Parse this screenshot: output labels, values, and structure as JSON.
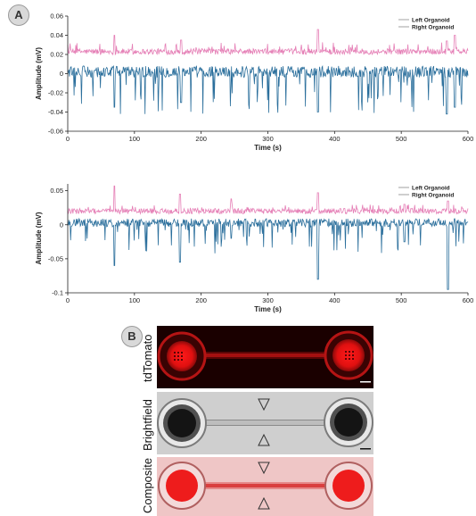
{
  "panel_a_label": "A",
  "panel_b_label": "B",
  "chart_data": [
    {
      "type": "line",
      "xlabel": "Time (s)",
      "ylabel": "Amplitude (mV)",
      "xlim": [
        0,
        600
      ],
      "ylim": [
        -0.06,
        0.06
      ],
      "xticks": [
        "0",
        "100",
        "200",
        "300",
        "400",
        "500",
        "600"
      ],
      "yticks": [
        "0.06",
        "0.04",
        "0.02",
        "0",
        "-0.02",
        "-0.04",
        "-0.06"
      ],
      "legend": "top-right",
      "series": [
        {
          "name": "Left Organoid",
          "color": "#e57fb6",
          "baseline": 0.023,
          "noise": 0.003,
          "bursts": [
            {
              "x": 70,
              "value": 0.04
            },
            {
              "x": 170,
              "value": 0.035
            },
            {
              "x": 375,
              "value": 0.046
            },
            {
              "x": 568,
              "value": 0.034
            },
            {
              "x": 580,
              "value": 0.04
            }
          ]
        },
        {
          "name": "Right Organoid",
          "color": "#2b6f9c",
          "baseline": 0.002,
          "noise": 0.006,
          "bursts": [
            {
              "x": 70,
              "value": -0.035
            },
            {
              "x": 170,
              "value": -0.03
            },
            {
              "x": 375,
              "value": -0.04
            },
            {
              "x": 568,
              "value": -0.042
            },
            {
              "x": 580,
              "value": -0.035
            }
          ]
        }
      ]
    },
    {
      "type": "line",
      "xlabel": "Time (s)",
      "ylabel": "Amplitude (mV)",
      "xlim": [
        0,
        600
      ],
      "ylim": [
        -0.1,
        0.06
      ],
      "xticks": [
        "0",
        "100",
        "200",
        "300",
        "400",
        "500",
        "600"
      ],
      "yticks": [
        "0.05",
        "0",
        "-0.05",
        "-0.1"
      ],
      "legend": "top-right",
      "series": [
        {
          "name": "Left Organoid",
          "color": "#e57fb6",
          "baseline": 0.02,
          "noise": 0.004,
          "bursts": [
            {
              "x": 70,
              "value": 0.057
            },
            {
              "x": 168,
              "value": 0.045
            },
            {
              "x": 245,
              "value": 0.038
            },
            {
              "x": 375,
              "value": 0.047
            },
            {
              "x": 505,
              "value": 0.03
            },
            {
              "x": 570,
              "value": 0.035
            }
          ]
        },
        {
          "name": "Right Organoid",
          "color": "#2b6f9c",
          "baseline": 0.003,
          "noise": 0.006,
          "bursts": [
            {
              "x": 70,
              "value": -0.06
            },
            {
              "x": 168,
              "value": -0.055
            },
            {
              "x": 245,
              "value": -0.02
            },
            {
              "x": 375,
              "value": -0.08
            },
            {
              "x": 505,
              "value": -0.025
            },
            {
              "x": 570,
              "value": -0.095
            }
          ]
        }
      ]
    }
  ],
  "images": [
    {
      "label": "tdTomato",
      "style": "fluorescence-red"
    },
    {
      "label": "Brightfield",
      "style": "grayscale"
    },
    {
      "label": "Composite",
      "style": "overlay"
    }
  ]
}
